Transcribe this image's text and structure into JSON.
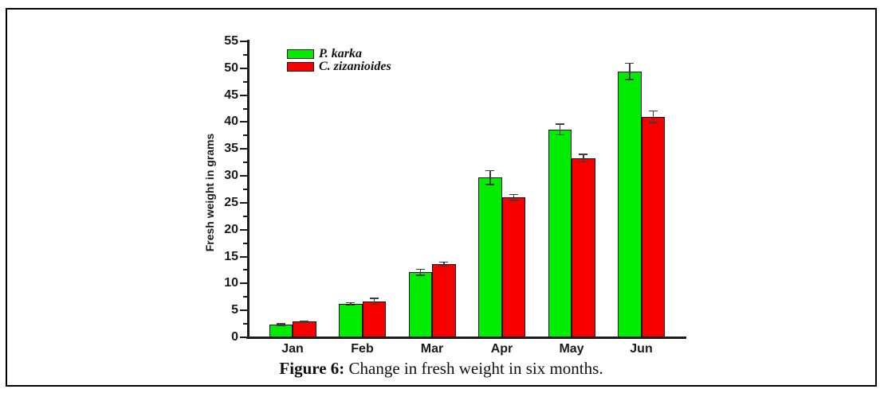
{
  "figure": {
    "caption_label": "Figure 6:",
    "caption_text": " Change in fresh weight in six months."
  },
  "chart_data": {
    "type": "bar",
    "title": "",
    "xlabel": "",
    "ylabel": "Fresh weight in grams",
    "categories": [
      "Jan",
      "Feb",
      "Mar",
      "Apr",
      "May",
      "Jun"
    ],
    "series": [
      {
        "name": "P. karka",
        "color": "#00ec00",
        "values": [
          2.4,
          6.2,
          12.1,
          29.7,
          38.6,
          49.4
        ],
        "errors": [
          0.15,
          0.2,
          0.55,
          1.3,
          1.0,
          1.5
        ]
      },
      {
        "name": "C. zizanioides",
        "color": "#f80000",
        "values": [
          2.9,
          6.7,
          13.6,
          26.0,
          33.3,
          41.0
        ],
        "errors": [
          0.1,
          0.55,
          0.4,
          0.55,
          0.7,
          1.1
        ]
      }
    ],
    "ylim": [
      0,
      55
    ],
    "ytick_major": 5,
    "ytick_minor": 2.5,
    "legend_position": "top-left-inside",
    "grid": false,
    "error_bars": true
  }
}
